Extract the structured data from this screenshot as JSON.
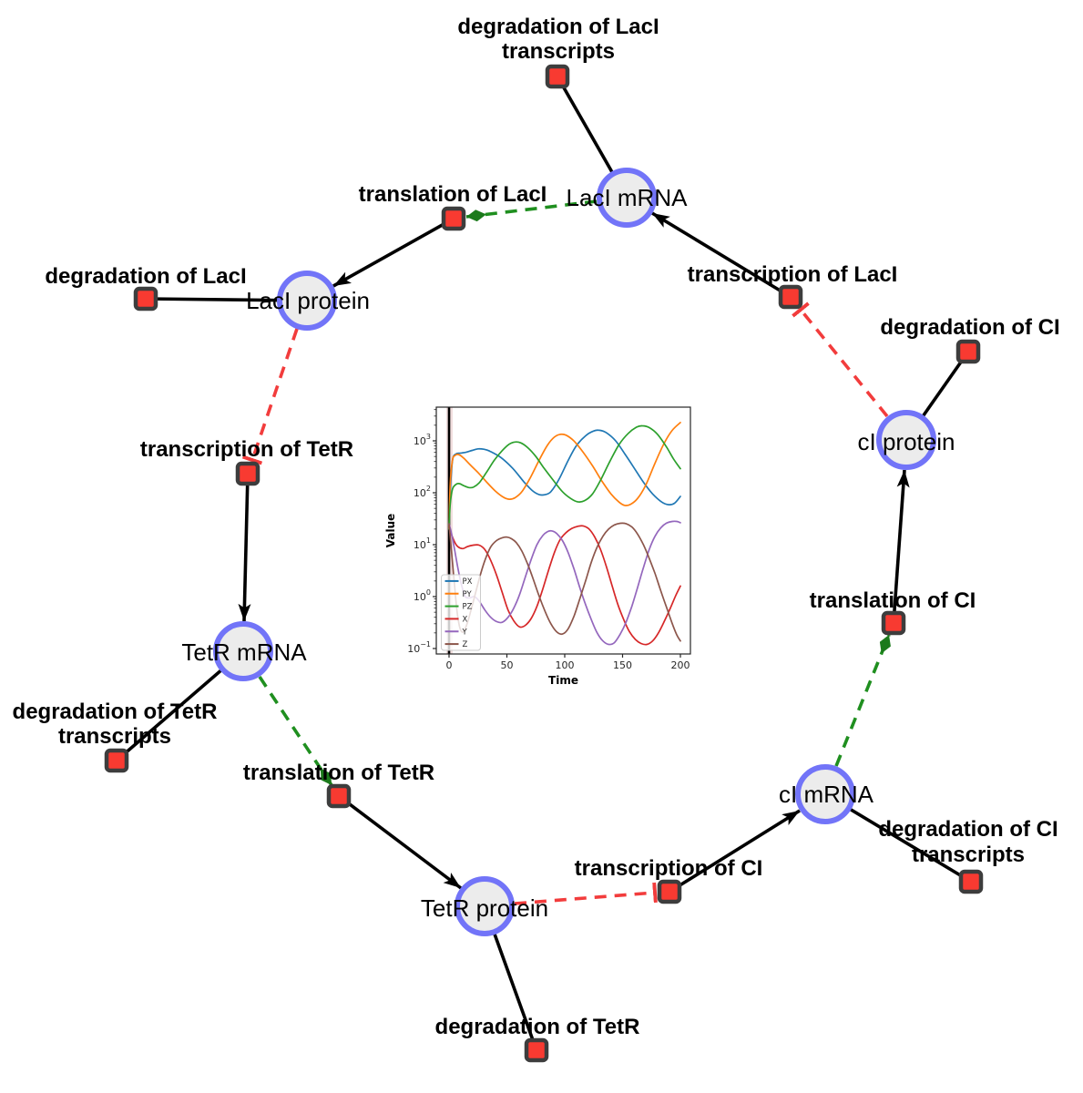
{
  "diagram": {
    "species": [
      {
        "id": "laci-mrna",
        "label": "LacI mRNA"
      },
      {
        "id": "laci-protein",
        "label": "LacI protein"
      },
      {
        "id": "tetr-mrna",
        "label": "TetR mRNA"
      },
      {
        "id": "tetr-protein",
        "label": "TetR protein"
      },
      {
        "id": "ci-mrna",
        "label": "cI mRNA"
      },
      {
        "id": "ci-protein",
        "label": "cI protein"
      }
    ],
    "reactions": [
      {
        "id": "degradation-of-laci-transcripts",
        "label_lines": [
          "degradation of LacI",
          "transcripts"
        ]
      },
      {
        "id": "translation-of-laci",
        "label_lines": [
          "translation of LacI"
        ]
      },
      {
        "id": "degradation-of-laci",
        "label_lines": [
          "degradation of LacI"
        ]
      },
      {
        "id": "transcription-of-laci",
        "label_lines": [
          "transcription of LacI"
        ]
      },
      {
        "id": "degradation-of-ci",
        "label_lines": [
          "degradation of CI"
        ]
      },
      {
        "id": "transcription-of-tetr",
        "label_lines": [
          "transcription of TetR"
        ]
      },
      {
        "id": "degradation-of-tetr-transcripts",
        "label_lines": [
          "degradation of TetR",
          "transcripts"
        ]
      },
      {
        "id": "translation-of-tetr",
        "label_lines": [
          "translation of TetR"
        ]
      },
      {
        "id": "degradation-of-tetr",
        "label_lines": [
          "degradation of TetR"
        ]
      },
      {
        "id": "transcription-of-ci",
        "label_lines": [
          "transcription of CI"
        ]
      },
      {
        "id": "degradation-of-ci-transcripts",
        "label_lines": [
          "degradation of CI",
          "transcripts"
        ]
      },
      {
        "id": "translation-of-ci",
        "label_lines": [
          "translation of CI"
        ]
      }
    ],
    "colors": {
      "species_fill": "#ececec",
      "species_border": "#7274f8",
      "reaction_fill": "#f83a31",
      "reaction_border": "#3d3d3d",
      "plain_edge": "#000000",
      "activation_edge": "#1f8f1f",
      "inhibition_edge": "#f23c3c"
    }
  },
  "chart_data": {
    "type": "line",
    "xlabel": "Time",
    "ylabel": "Value",
    "yscale": "log",
    "xlim": [
      -11,
      209
    ],
    "ylim": [
      0.079,
      4500
    ],
    "xticks": [
      0,
      50,
      100,
      150,
      200
    ],
    "ytick_exponents": [
      3,
      2,
      1,
      0,
      -1
    ],
    "axvline_t": 0,
    "legend_position": "lower left",
    "grid": false,
    "series": [
      {
        "name": "PX",
        "color": "#1f77b4",
        "points": [
          [
            0,
            20
          ],
          [
            1,
            100
          ],
          [
            3,
            420
          ],
          [
            6,
            560
          ],
          [
            10,
            580
          ],
          [
            15,
            605
          ],
          [
            20,
            655
          ],
          [
            25,
            700
          ],
          [
            30,
            690
          ],
          [
            35,
            635
          ],
          [
            45,
            475
          ],
          [
            55,
            295
          ],
          [
            65,
            160
          ],
          [
            72,
            110
          ],
          [
            78,
            92
          ],
          [
            83,
            92
          ],
          [
            88,
            105
          ],
          [
            95,
            180
          ],
          [
            103,
            420
          ],
          [
            110,
            800
          ],
          [
            118,
            1250
          ],
          [
            125,
            1550
          ],
          [
            130,
            1600
          ],
          [
            136,
            1430
          ],
          [
            144,
            1000
          ],
          [
            152,
            560
          ],
          [
            160,
            300
          ],
          [
            168,
            160
          ],
          [
            176,
            95
          ],
          [
            184,
            66
          ],
          [
            190,
            59
          ],
          [
            195,
            63
          ],
          [
            200,
            85
          ]
        ]
      },
      {
        "name": "PY",
        "color": "#ff7f0e",
        "points": [
          [
            0,
            20
          ],
          [
            1,
            150
          ],
          [
            3,
            430
          ],
          [
            5,
            520
          ],
          [
            8,
            545
          ],
          [
            12,
            480
          ],
          [
            18,
            350
          ],
          [
            25,
            245
          ],
          [
            32,
            165
          ],
          [
            40,
            108
          ],
          [
            47,
            82
          ],
          [
            52,
            75
          ],
          [
            57,
            80
          ],
          [
            63,
            105
          ],
          [
            70,
            190
          ],
          [
            78,
            430
          ],
          [
            85,
            820
          ],
          [
            91,
            1180
          ],
          [
            96,
            1330
          ],
          [
            101,
            1290
          ],
          [
            108,
            990
          ],
          [
            116,
            600
          ],
          [
            124,
            330
          ],
          [
            132,
            170
          ],
          [
            140,
            95
          ],
          [
            147,
            66
          ],
          [
            152,
            57
          ],
          [
            157,
            60
          ],
          [
            163,
            78
          ],
          [
            170,
            140
          ],
          [
            178,
            370
          ],
          [
            186,
            900
          ],
          [
            193,
            1600
          ],
          [
            200,
            2250
          ]
        ]
      },
      {
        "name": "PZ",
        "color": "#2ca02c",
        "points": [
          [
            0,
            20
          ],
          [
            1,
            60
          ],
          [
            3,
            118
          ],
          [
            6,
            145
          ],
          [
            9,
            150
          ],
          [
            13,
            136
          ],
          [
            17,
            126
          ],
          [
            21,
            128
          ],
          [
            26,
            155
          ],
          [
            32,
            240
          ],
          [
            39,
            420
          ],
          [
            46,
            650
          ],
          [
            52,
            860
          ],
          [
            57,
            950
          ],
          [
            62,
            915
          ],
          [
            68,
            740
          ],
          [
            75,
            500
          ],
          [
            82,
            300
          ],
          [
            90,
            175
          ],
          [
            98,
            105
          ],
          [
            105,
            78
          ],
          [
            111,
            67
          ],
          [
            117,
            70
          ],
          [
            124,
            95
          ],
          [
            131,
            175
          ],
          [
            139,
            400
          ],
          [
            147,
            850
          ],
          [
            155,
            1400
          ],
          [
            162,
            1830
          ],
          [
            167,
            1950
          ],
          [
            173,
            1800
          ],
          [
            180,
            1350
          ],
          [
            188,
            760
          ],
          [
            194,
            450
          ],
          [
            200,
            290
          ]
        ]
      },
      {
        "name": "X",
        "color": "#d62728",
        "points": [
          [
            0,
            22
          ],
          [
            2,
            16
          ],
          [
            5,
            11
          ],
          [
            8,
            9
          ],
          [
            12,
            8.4
          ],
          [
            16,
            9.2
          ],
          [
            21,
            9.8
          ],
          [
            26,
            9.8
          ],
          [
            31,
            8
          ],
          [
            36,
            5
          ],
          [
            41,
            2.6
          ],
          [
            46,
            1.2
          ],
          [
            51,
            0.55
          ],
          [
            56,
            0.34
          ],
          [
            61,
            0.26
          ],
          [
            66,
            0.28
          ],
          [
            71,
            0.38
          ],
          [
            76,
            0.65
          ],
          [
            81,
            1.4
          ],
          [
            86,
            3.2
          ],
          [
            91,
            7
          ],
          [
            96,
            12.5
          ],
          [
            101,
            17
          ],
          [
            106,
            20.5
          ],
          [
            111,
            22.5
          ],
          [
            116,
            23
          ],
          [
            121,
            20
          ],
          [
            126,
            14
          ],
          [
            131,
            8
          ],
          [
            136,
            3.8
          ],
          [
            141,
            1.6
          ],
          [
            146,
            0.7
          ],
          [
            151,
            0.36
          ],
          [
            156,
            0.21
          ],
          [
            161,
            0.15
          ],
          [
            166,
            0.125
          ],
          [
            171,
            0.12
          ],
          [
            176,
            0.14
          ],
          [
            181,
            0.2
          ],
          [
            186,
            0.33
          ],
          [
            191,
            0.58
          ],
          [
            196,
            1.05
          ],
          [
            200,
            1.6
          ]
        ]
      },
      {
        "name": "Y",
        "color": "#9467bd",
        "points": [
          [
            0,
            25
          ],
          [
            2,
            17
          ],
          [
            5,
            7.5
          ],
          [
            8,
            3.2
          ],
          [
            11,
            1.6
          ],
          [
            14,
            1.0
          ],
          [
            18,
            0.95
          ],
          [
            22,
            1.0
          ],
          [
            26,
            0.82
          ],
          [
            31,
            0.55
          ],
          [
            36,
            0.4
          ],
          [
            41,
            0.33
          ],
          [
            46,
            0.32
          ],
          [
            51,
            0.4
          ],
          [
            56,
            0.6
          ],
          [
            61,
            1.1
          ],
          [
            66,
            2.4
          ],
          [
            71,
            5.2
          ],
          [
            76,
            10
          ],
          [
            81,
            15
          ],
          [
            85,
            17.8
          ],
          [
            89,
            18.4
          ],
          [
            93,
            16.5
          ],
          [
            98,
            12
          ],
          [
            103,
            7
          ],
          [
            108,
            3.4
          ],
          [
            113,
            1.5
          ],
          [
            118,
            0.7
          ],
          [
            123,
            0.36
          ],
          [
            128,
            0.2
          ],
          [
            133,
            0.14
          ],
          [
            138,
            0.12
          ],
          [
            143,
            0.13
          ],
          [
            148,
            0.19
          ],
          [
            153,
            0.32
          ],
          [
            158,
            0.65
          ],
          [
            163,
            1.5
          ],
          [
            168,
            3.6
          ],
          [
            173,
            8
          ],
          [
            178,
            14.5
          ],
          [
            183,
            21
          ],
          [
            188,
            26
          ],
          [
            193,
            28
          ],
          [
            197,
            28
          ],
          [
            200,
            26.5
          ]
        ]
      },
      {
        "name": "Z",
        "color": "#8c564b",
        "points": [
          [
            0,
            25
          ],
          [
            1,
            14
          ],
          [
            3,
            4.5
          ],
          [
            5,
            1.4
          ],
          [
            7,
            0.5
          ],
          [
            9,
            0.27
          ],
          [
            11,
            0.21
          ],
          [
            13,
            0.22
          ],
          [
            16,
            0.32
          ],
          [
            19,
            0.55
          ],
          [
            23,
            1.2
          ],
          [
            27,
            2.6
          ],
          [
            31,
            5
          ],
          [
            36,
            9
          ],
          [
            41,
            12
          ],
          [
            46,
            13.6
          ],
          [
            50,
            14
          ],
          [
            54,
            13
          ],
          [
            58,
            11
          ],
          [
            63,
            7.5
          ],
          [
            68,
            4.2
          ],
          [
            73,
            2.1
          ],
          [
            78,
            1.0
          ],
          [
            83,
            0.52
          ],
          [
            88,
            0.3
          ],
          [
            93,
            0.21
          ],
          [
            98,
            0.19
          ],
          [
            103,
            0.24
          ],
          [
            108,
            0.42
          ],
          [
            113,
            0.9
          ],
          [
            118,
            2.0
          ],
          [
            123,
            4.6
          ],
          [
            128,
            9
          ],
          [
            133,
            14.5
          ],
          [
            138,
            20
          ],
          [
            143,
            24
          ],
          [
            148,
            25.8
          ],
          [
            153,
            25.4
          ],
          [
            158,
            22
          ],
          [
            163,
            16
          ],
          [
            168,
            10
          ],
          [
            173,
            5.5
          ],
          [
            178,
            2.8
          ],
          [
            183,
            1.3
          ],
          [
            188,
            0.62
          ],
          [
            193,
            0.3
          ],
          [
            197,
            0.18
          ],
          [
            200,
            0.14
          ]
        ]
      }
    ]
  }
}
